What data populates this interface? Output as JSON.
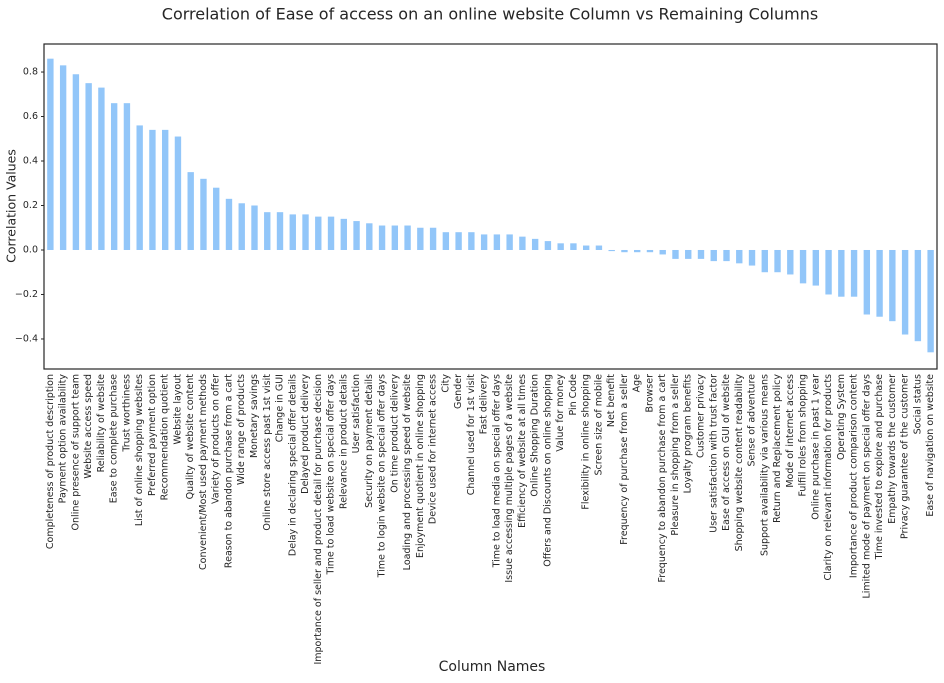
{
  "chart_data": {
    "type": "bar",
    "title": "Correlation of Ease of access on an online website Column vs Remaining Columns",
    "xlabel": "Column Names",
    "ylabel": "Correlation Values",
    "color": "#92c6f9",
    "categories": [
      "Completeness of product description",
      "Payment option availability",
      "Online presence of support team",
      "Website access speed",
      "Reliability of website",
      "Ease to complete purchase",
      "Trust worthiness",
      "List of online shopping websites",
      "Preferred payment option",
      "Recommendation quotient",
      "Website layout",
      "Quality of website content",
      "Convenient/Most used payment methods",
      "Variety of products on offer",
      "Reason to abandon purchase from a cart",
      "Wide range of products",
      "Monetary savings",
      "Online store access past 1st visit",
      "Change in GUI",
      "Delay in declaring special offer details",
      "Delayed product delivery",
      "Importance of seller and product detail for purchase decision",
      "Time to load website on special offer days",
      "Relevance in product details",
      "User satisfaction",
      "Security on payment details",
      "Time to login website on special offer days",
      "On time product delivery",
      "Loading and processing speed of website",
      "Enjoyment quotient in online shopping",
      "Device used for internet access",
      "City",
      "Gender",
      "Channel used for 1st visit",
      "Fast delivery",
      "Time to load media on special offer days",
      "Issue accessing multiple pages of a website",
      "Efficiency of website at all times",
      "Online Shopping Duration",
      "Offers and Discounts on online shopping",
      "Value for money",
      "Pin Code",
      "Flexibility in online shopping",
      "Screen size of mobile",
      "Net benefit",
      "Frequency of purchase from a seller",
      "Age",
      "Browser",
      "Frequency to abandon purchase from a cart",
      "Pleasure in shopping from a seller",
      "Loyalty program benefits",
      "Customer privacy",
      "User satisfaction with trust factor",
      "Ease of access on GUI of website",
      "Shopping website content readability",
      "Sense of adventure",
      "Support availability via various means",
      "Return and Replacement policy",
      "Mode of internet access",
      "Fulfill roles from shopping",
      "Online purchase in past 1 year",
      "Clarity on relevant information for products",
      "Operating System",
      "Importance of product comparison content",
      "Limited mode of payment on special offer days",
      "Time invested to explore and purchase",
      "Empathy towards the customer",
      "Privacy guarantee of the customer",
      "Social status",
      "Ease of navigation on website"
    ],
    "values": [
      0.86,
      0.83,
      0.79,
      0.75,
      0.73,
      0.66,
      0.66,
      0.56,
      0.54,
      0.54,
      0.51,
      0.35,
      0.32,
      0.28,
      0.23,
      0.21,
      0.2,
      0.17,
      0.17,
      0.16,
      0.16,
      0.15,
      0.15,
      0.14,
      0.13,
      0.12,
      0.11,
      0.11,
      0.11,
      0.1,
      0.1,
      0.08,
      0.08,
      0.08,
      0.07,
      0.07,
      0.07,
      0.06,
      0.05,
      0.04,
      0.03,
      0.03,
      0.02,
      0.02,
      -0.005,
      -0.01,
      -0.01,
      -0.01,
      -0.02,
      -0.04,
      -0.04,
      -0.04,
      -0.05,
      -0.05,
      -0.06,
      -0.07,
      -0.1,
      -0.1,
      -0.11,
      -0.15,
      -0.16,
      -0.2,
      -0.21,
      -0.21,
      -0.29,
      -0.3,
      -0.32,
      -0.38,
      -0.41,
      -0.46
    ],
    "ylim": [
      -0.535,
      0.926
    ],
    "yticks": [
      {
        "value": -0.4,
        "label": "−0.4"
      },
      {
        "value": -0.2,
        "label": "−0.2"
      },
      {
        "value": 0,
        "label": "0.0"
      },
      0.2,
      0.4,
      0.6,
      0.8
    ]
  }
}
